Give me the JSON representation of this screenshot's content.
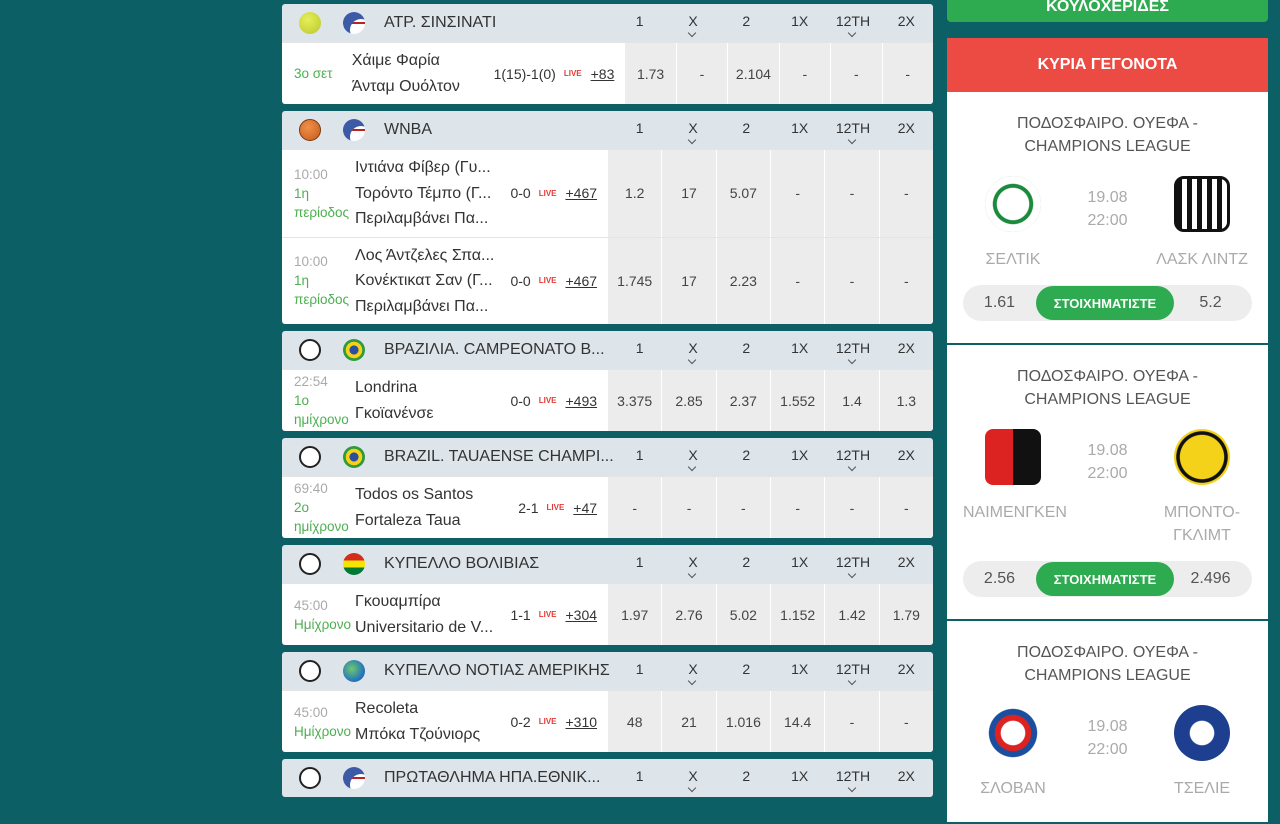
{
  "odds_columns": [
    "1",
    "X",
    "2",
    "1X",
    "12ΤΗ",
    "2X"
  ],
  "live_label": "LIVE",
  "leagues": [
    {
      "name": "ΑΤΡ. ΣΙΝΣΙΝΑΤΙ",
      "matches": [
        {
          "period": "3ο σετ",
          "teams": [
            "Χάιμε Φαρία",
            "Άνταμ Ουόλτον"
          ],
          "score": "1(15)-1(0)",
          "more": "+83",
          "odds": [
            "1.73",
            "-",
            "2.104",
            "-",
            "-",
            "-"
          ]
        }
      ]
    },
    {
      "name": "WNBA",
      "matches": [
        {
          "time": "10:00",
          "period": "1η περίοδος",
          "teams": [
            "Ιντιάνα Φίβερ (Γυ...",
            "Τορόντο Τέμπο (Γ...",
            "Περιλαμβάνει Πα..."
          ],
          "score": "0-0",
          "more": "+467",
          "odds": [
            "1.2",
            "17",
            "5.07",
            "-",
            "-",
            "-"
          ]
        },
        {
          "time": "10:00",
          "period": "1η περίοδος",
          "teams": [
            "Λος Άντζελες Σπα...",
            "Κονέκτικατ Σαν (Γ...",
            "Περιλαμβάνει Πα..."
          ],
          "score": "0-0",
          "more": "+467",
          "odds": [
            "1.745",
            "17",
            "2.23",
            "-",
            "-",
            "-"
          ]
        }
      ]
    },
    {
      "name": "ΒΡΑΖΙΛΙΑ. CAMPEONATO B...",
      "matches": [
        {
          "time": "22:54",
          "period": "1ο ημίχρονο",
          "teams": [
            "Londrina",
            "Γκοϊανένσε"
          ],
          "score": "0-0",
          "more": "+493",
          "odds": [
            "3.375",
            "2.85",
            "2.37",
            "1.552",
            "1.4",
            "1.3"
          ]
        }
      ]
    },
    {
      "name": "BRAZIL. TAUAENSE CHAMPI...",
      "matches": [
        {
          "time": "69:40",
          "period": "2ο ημίχρονο",
          "teams": [
            "Todos os Santos",
            "Fortaleza Taua"
          ],
          "score": "2-1",
          "more": "+47",
          "odds": [
            "-",
            "-",
            "-",
            "-",
            "-",
            "-"
          ]
        }
      ]
    },
    {
      "name": "ΚΥΠΕΛΛΟ ΒΟΛΙΒΙΑΣ",
      "matches": [
        {
          "time": "45:00",
          "period": "Ημίχρονο",
          "teams": [
            "Γκουαμπίρα",
            "Universitario de V..."
          ],
          "score": "1-1",
          "more": "+304",
          "odds": [
            "1.97",
            "2.76",
            "5.02",
            "1.152",
            "1.42",
            "1.79"
          ]
        }
      ]
    },
    {
      "name": "ΚΥΠΕΛΛΟ ΝΟΤΙΑΣ ΑΜΕΡΙΚΗΣ",
      "matches": [
        {
          "time": "45:00",
          "period": "Ημίχρονο",
          "teams": [
            "Recoleta",
            "Μπόκα Τζούνιορς"
          ],
          "score": "0-2",
          "more": "+310",
          "odds": [
            "48",
            "21",
            "1.016",
            "14.4",
            "-",
            "-"
          ]
        }
      ]
    },
    {
      "name": "ΠΡΩΤΑΘΛΗΜΑ ΗΠΑ.ΕΘΝΙΚ...",
      "matches": []
    }
  ],
  "sidebar": {
    "top_button": "ΚΟΥΛΟΧΕΡΙΔΕΣ",
    "title": "ΚΥΡΙΑ ΓΕΓΟΝΟΤΑ",
    "bet_label": "ΣΤΟΙΧΗΜΑΤΙΣΤΕ",
    "events": [
      {
        "competition": "ΠΟΔΟΣΦΑΙΡΟ. ΟΥΕΦΑ - CHAMPIONS LEAGUE",
        "date": "19.08",
        "time": "22:00",
        "home": "ΣΕΛΤΙΚ",
        "away": "ΛΑΣΚ ΛΙΝΤΖ",
        "home_odds": "1.61",
        "away_odds": "5.2"
      },
      {
        "competition": "ΠΟΔΟΣΦΑΙΡΟ. ΟΥΕΦΑ - CHAMPIONS LEAGUE",
        "date": "19.08",
        "time": "22:00",
        "home": "ΝΑΙΜΕΝΓΚΕΝ",
        "away": "ΜΠΟΝΤΟ-ΓΚΛΙΜΤ",
        "home_odds": "2.56",
        "away_odds": "2.496"
      },
      {
        "competition": "ΠΟΔΟΣΦΑΙΡΟ. ΟΥΕΦΑ - CHAMPIONS LEAGUE",
        "date": "19.08",
        "time": "22:00",
        "home": "ΣΛΟΒΑΝ",
        "away": "ΤΣΕΛΙΕ"
      }
    ]
  }
}
